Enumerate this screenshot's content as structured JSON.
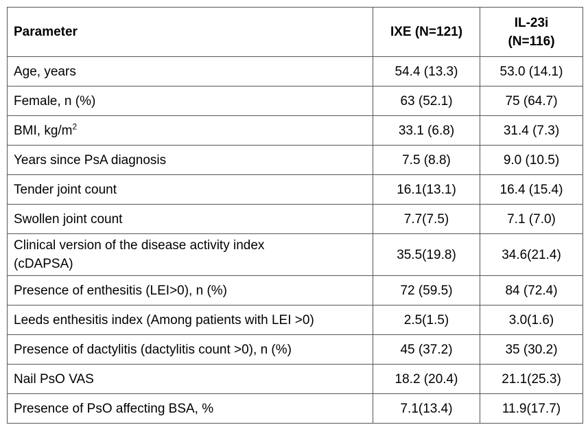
{
  "table": {
    "headers": {
      "parameter": "Parameter",
      "ixe": "IXE (N=121)",
      "il23i_line1": "IL-23i",
      "il23i_line2": "(N=116)"
    },
    "rows": [
      {
        "label": "Age, years",
        "ixe": "54.4 (13.3)",
        "il23i": "53.0 (14.1)"
      },
      {
        "label": "Female, n (%)",
        "ixe": "63 (52.1)",
        "il23i": "75 (64.7)"
      },
      {
        "label": "BMI, kg/m",
        "label_sup": "2",
        "ixe": "33.1 (6.8)",
        "il23i": "31.4 (7.3)"
      },
      {
        "label": "Years since PsA diagnosis",
        "ixe": "7.5 (8.8)",
        "il23i": "9.0 (10.5)"
      },
      {
        "label": "Tender joint count",
        "ixe": "16.1(13.1)",
        "il23i": "16.4 (15.4)"
      },
      {
        "label": "Swollen joint count",
        "ixe": "7.7(7.5)",
        "il23i": "7.1 (7.0)"
      },
      {
        "label_line1": "Clinical version of the disease activity index",
        "label_line2": "(cDAPSA)",
        "ixe": "35.5(19.8)",
        "il23i": "34.6(21.4)"
      },
      {
        "label": "Presence of enthesitis (LEI>0), n (%)",
        "ixe": "72 (59.5)",
        "il23i": "84 (72.4)"
      },
      {
        "label": "Leeds enthesitis index (Among patients with LEI >0)",
        "ixe": "2.5(1.5)",
        "il23i": "3.0(1.6)"
      },
      {
        "label": "Presence of dactylitis (dactylitis count >0), n (%)",
        "ixe": "45 (37.2)",
        "il23i": "35 (30.2)"
      },
      {
        "label": "Nail PsO VAS",
        "ixe": "18.2 (20.4)",
        "il23i": "21.1(25.3)"
      },
      {
        "label": "Presence of PsO affecting BSA, %",
        "ixe": "7.1(13.4)",
        "il23i": "11.9(17.7)"
      }
    ]
  }
}
